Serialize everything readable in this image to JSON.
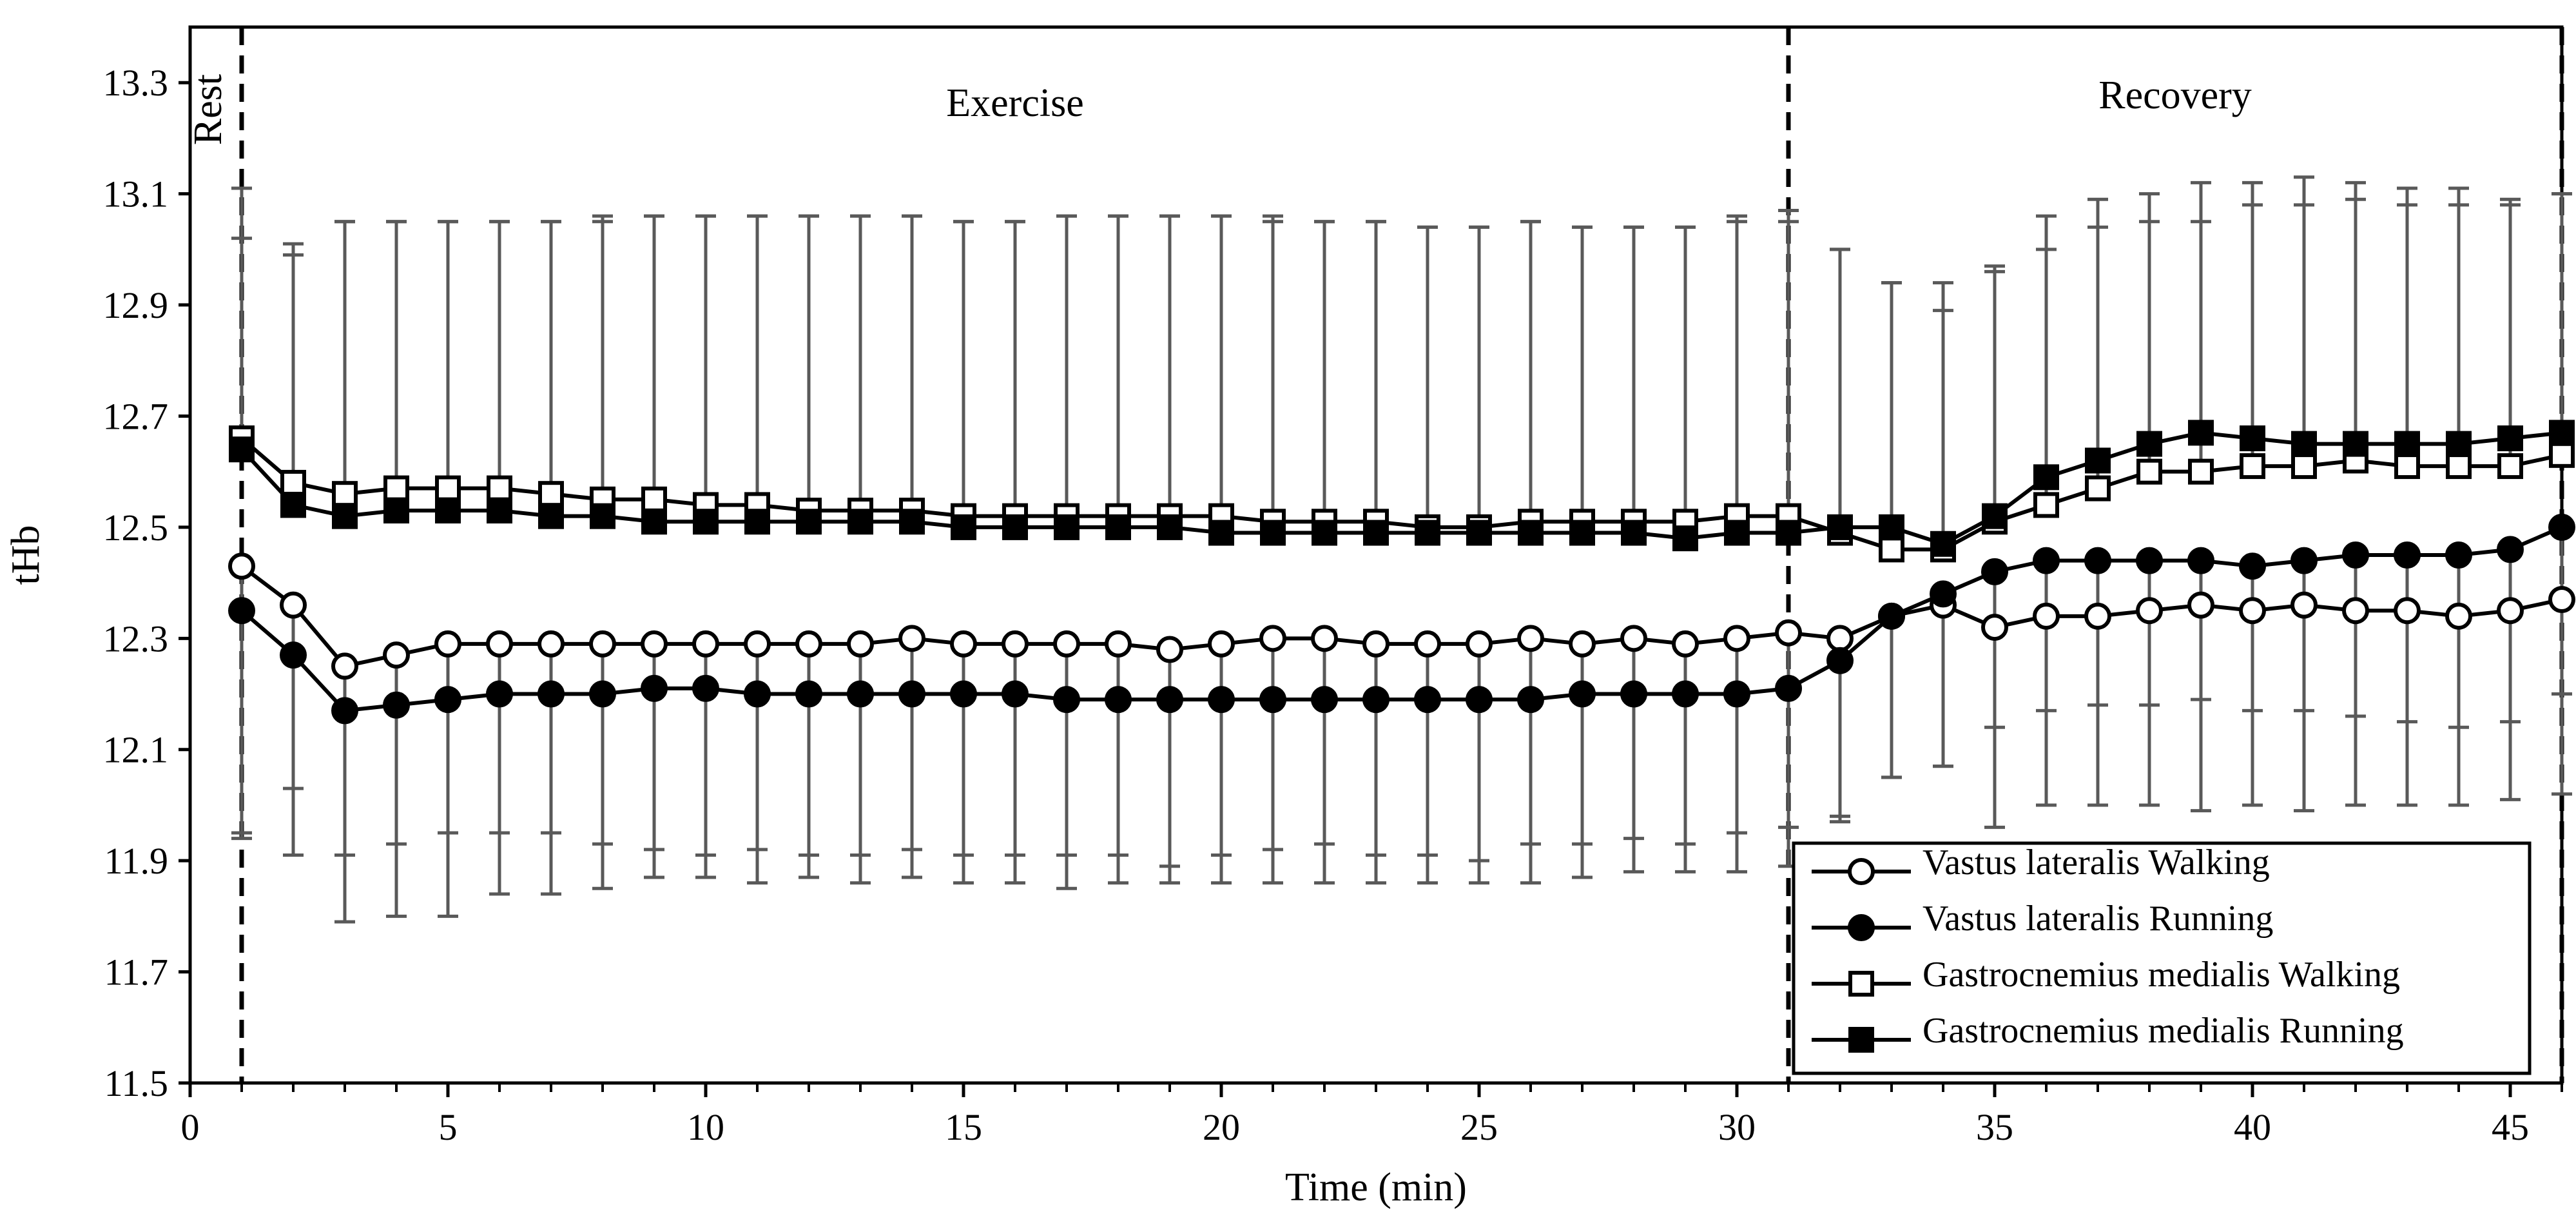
{
  "chart_data": {
    "type": "line",
    "title": "",
    "xlabel": "Time (min)",
    "ylabel": "tHb",
    "xlim": [
      0,
      46
    ],
    "ylim": [
      11.5,
      13.4
    ],
    "xticks": [
      "0",
      "5",
      "10",
      "15",
      "20",
      "25",
      "30",
      "35",
      "40",
      "45"
    ],
    "yticks": [
      "11.5",
      "11.7",
      "11.9",
      "12.1",
      "12.3",
      "12.5",
      "12.7",
      "12.9",
      "13.1",
      "13.3"
    ],
    "grid": false,
    "legend_position": "bottom-right",
    "annotations": [
      "Rest",
      "Exercise",
      "Recovery"
    ],
    "phase_lines_x": [
      1,
      31,
      46
    ],
    "x": [
      1,
      2,
      3,
      4,
      5,
      6,
      7,
      8,
      9,
      10,
      11,
      12,
      13,
      14,
      15,
      16,
      17,
      18,
      19,
      20,
      21,
      22,
      23,
      24,
      25,
      26,
      27,
      28,
      29,
      30,
      31,
      32,
      33,
      34,
      35,
      36,
      37,
      38,
      39,
      40,
      41,
      42,
      43,
      44,
      45,
      46
    ],
    "series": [
      {
        "name": "Vastus lateralis Walking",
        "marker": "circle-open",
        "values": [
          12.43,
          12.36,
          12.25,
          12.27,
          12.29,
          12.29,
          12.29,
          12.29,
          12.29,
          12.29,
          12.29,
          12.29,
          12.29,
          12.3,
          12.29,
          12.29,
          12.29,
          12.29,
          12.28,
          12.29,
          12.3,
          12.3,
          12.29,
          12.29,
          12.29,
          12.3,
          12.29,
          12.3,
          12.29,
          12.3,
          12.31,
          12.3,
          12.34,
          12.36,
          12.32,
          12.34,
          12.34,
          12.35,
          12.36,
          12.35,
          12.36,
          12.35,
          12.35,
          12.34,
          12.35,
          12.37
        ],
        "errors": [
          0.48,
          0.33,
          0.34,
          0.34,
          0.34,
          0.34,
          0.34,
          0.36,
          0.37,
          0.38,
          0.37,
          0.38,
          0.38,
          0.38,
          0.38,
          0.38,
          0.38,
          0.38,
          0.39,
          0.38,
          0.38,
          0.37,
          0.38,
          0.38,
          0.39,
          0.37,
          0.36,
          0.36,
          0.36,
          0.35,
          0.35,
          0.33,
          0.29,
          0.29,
          0.36,
          0.17,
          0.16,
          0.17,
          0.17,
          0.18,
          0.19,
          0.19,
          0.2,
          0.2,
          0.2,
          0.17
        ]
      },
      {
        "name": "Vastus lateralis Running",
        "marker": "circle-filled",
        "values": [
          12.35,
          12.27,
          12.17,
          12.18,
          12.19,
          12.2,
          12.2,
          12.2,
          12.21,
          12.21,
          12.2,
          12.2,
          12.2,
          12.2,
          12.2,
          12.2,
          12.19,
          12.19,
          12.19,
          12.19,
          12.19,
          12.19,
          12.19,
          12.19,
          12.19,
          12.19,
          12.2,
          12.2,
          12.2,
          12.2,
          12.21,
          12.26,
          12.34,
          12.38,
          12.42,
          12.44,
          12.44,
          12.44,
          12.44,
          12.43,
          12.44,
          12.45,
          12.45,
          12.45,
          12.46,
          12.5
        ],
        "errors": [
          0.41,
          0.36,
          0.38,
          0.38,
          0.39,
          0.36,
          0.36,
          0.35,
          0.34,
          0.34,
          0.34,
          0.33,
          0.34,
          0.33,
          0.34,
          0.34,
          0.34,
          0.33,
          0.33,
          0.33,
          0.33,
          0.33,
          0.33,
          0.33,
          0.33,
          0.33,
          0.33,
          0.32,
          0.32,
          0.32,
          0.32,
          0.28,
          0.29,
          0.31,
          0.28,
          0.44,
          0.44,
          0.44,
          0.45,
          0.43,
          0.45,
          0.45,
          0.45,
          0.45,
          0.45,
          0.48
        ]
      },
      {
        "name": "Gastrocnemius medialis Walking",
        "marker": "square-open",
        "values": [
          12.66,
          12.58,
          12.56,
          12.57,
          12.57,
          12.57,
          12.56,
          12.55,
          12.55,
          12.54,
          12.54,
          12.53,
          12.53,
          12.53,
          12.52,
          12.52,
          12.52,
          12.52,
          12.52,
          12.52,
          12.51,
          12.51,
          12.51,
          12.5,
          12.5,
          12.51,
          12.51,
          12.51,
          12.51,
          12.52,
          12.52,
          12.49,
          12.46,
          12.46,
          12.51,
          12.54,
          12.57,
          12.6,
          12.6,
          12.61,
          12.61,
          12.62,
          12.61,
          12.61,
          12.61,
          12.63
        ],
        "errors": [
          0.36,
          0.41,
          0.49,
          0.48,
          0.48,
          0.48,
          0.49,
          0.5,
          0.51,
          0.52,
          0.52,
          0.53,
          0.53,
          0.53,
          0.53,
          0.53,
          0.54,
          0.54,
          0.54,
          0.54,
          0.54,
          0.54,
          0.54,
          0.54,
          0.54,
          0.54,
          0.53,
          0.53,
          0.53,
          0.53,
          0.53,
          0.51,
          0.48,
          0.43,
          0.45,
          0.46,
          0.47,
          0.45,
          0.45,
          0.47,
          0.47,
          0.47,
          0.47,
          0.47,
          0.47,
          0.47
        ]
      },
      {
        "name": "Gastrocnemius medialis Running",
        "marker": "square-filled",
        "values": [
          12.64,
          12.54,
          12.52,
          12.53,
          12.53,
          12.53,
          12.52,
          12.52,
          12.51,
          12.51,
          12.51,
          12.51,
          12.51,
          12.51,
          12.5,
          12.5,
          12.5,
          12.5,
          12.5,
          12.49,
          12.49,
          12.49,
          12.49,
          12.49,
          12.49,
          12.49,
          12.49,
          12.49,
          12.48,
          12.49,
          12.49,
          12.5,
          12.5,
          12.47,
          12.52,
          12.59,
          12.62,
          12.65,
          12.67,
          12.66,
          12.65,
          12.65,
          12.65,
          12.65,
          12.66,
          12.67
        ],
        "errors": [
          0.47,
          0.47,
          0.53,
          0.52,
          0.52,
          0.52,
          0.53,
          0.54,
          0.55,
          0.55,
          0.55,
          0.55,
          0.55,
          0.55,
          0.55,
          0.55,
          0.56,
          0.56,
          0.56,
          0.57,
          0.57,
          0.56,
          0.56,
          0.55,
          0.55,
          0.56,
          0.55,
          0.55,
          0.56,
          0.57,
          0.58,
          0.5,
          0.44,
          0.47,
          0.45,
          0.47,
          0.47,
          0.45,
          0.45,
          0.46,
          0.48,
          0.47,
          0.46,
          0.46,
          0.43,
          0.43
        ]
      }
    ]
  },
  "colors": {
    "line": "#000000",
    "errorbar": "#595959",
    "marker_open_fill": "#ffffff",
    "marker_filled": "#000000",
    "background": "#ffffff"
  }
}
